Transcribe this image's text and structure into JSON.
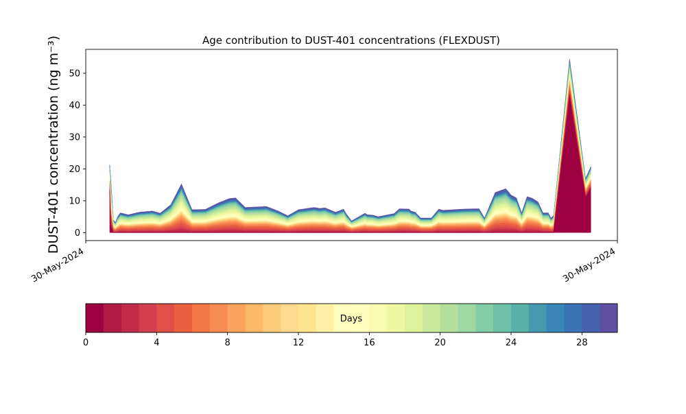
{
  "chart_data": {
    "type": "area",
    "title": "Age contribution to DUST-401 concentrations (FLEXDUST)",
    "ylabel": "DUST-401 concentration (ng m⁻³)",
    "xlabel": "",
    "ylim": [
      -2.5,
      57.5
    ],
    "y_ticks": [
      "0",
      "10",
      "20",
      "30",
      "40",
      "50"
    ],
    "x_ticks": [
      "30-May-2024",
      "30-May-2024"
    ],
    "x": [
      0.045,
      0.047,
      0.052,
      0.056,
      0.06,
      0.065,
      0.08,
      0.1,
      0.125,
      0.14,
      0.16,
      0.18,
      0.2,
      0.225,
      0.25,
      0.27,
      0.282,
      0.3,
      0.34,
      0.362,
      0.38,
      0.4,
      0.42,
      0.43,
      0.44,
      0.45,
      0.47,
      0.485,
      0.49,
      0.5,
      0.525,
      0.53,
      0.54,
      0.55,
      0.58,
      0.59,
      0.608,
      0.612,
      0.62,
      0.63,
      0.65,
      0.664,
      0.672,
      0.7,
      0.71,
      0.73,
      0.74,
      0.75,
      0.77,
      0.79,
      0.8,
      0.81,
      0.82,
      0.83,
      0.84,
      0.851,
      0.86,
      0.87,
      0.875,
      0.88,
      0.91,
      0.94,
      0.95
    ],
    "totals": [
      21.3,
      17.0,
      4.0,
      3.2,
      5.0,
      6.2,
      5.6,
      6.4,
      6.8,
      6.1,
      8.8,
      15.3,
      7.2,
      7.3,
      9.4,
      10.7,
      10.9,
      7.9,
      8.2,
      6.8,
      5.3,
      7.2,
      7.7,
      7.9,
      7.6,
      7.8,
      6.4,
      7.4,
      5.9,
      3.7,
      6.1,
      5.6,
      5.5,
      5.0,
      6.0,
      7.5,
      7.4,
      6.8,
      6.4,
      4.6,
      4.6,
      7.4,
      7.0,
      7.3,
      7.4,
      7.5,
      7.5,
      4.6,
      12.6,
      13.8,
      11.8,
      10.9,
      6.2,
      11.3,
      10.8,
      9.6,
      6.2,
      6.2,
      4.6,
      5.4,
      54.5,
      17.0,
      20.7
    ],
    "age0_day": [
      13.0,
      2.0,
      0.0,
      0.0,
      0.0,
      0.0,
      0.0,
      0.0,
      0.0,
      0.0,
      0.0,
      0.0,
      0.0,
      0.0,
      0.0,
      0.0,
      0.0,
      0.0,
      0.0,
      0.0,
      0.0,
      0.0,
      0.0,
      0.0,
      0.0,
      0.0,
      0.0,
      0.0,
      0.0,
      0.0,
      0.0,
      0.0,
      0.0,
      0.0,
      0.0,
      0.0,
      0.0,
      0.0,
      0.0,
      0.0,
      0.0,
      0.0,
      0.0,
      0.0,
      0.0,
      0.0,
      0.0,
      0.0,
      0.0,
      0.0,
      0.0,
      0.0,
      0.0,
      0.0,
      0.0,
      0.0,
      0.0,
      0.0,
      0.0,
      0.0,
      43.0,
      11.0,
      14.0
    ],
    "colorbar": {
      "label": "Days",
      "min": 0,
      "max": 30,
      "bins": 30,
      "ticks": [
        "0",
        "4",
        "8",
        "12",
        "16",
        "20",
        "24",
        "28"
      ]
    },
    "colors": [
      "#9e0142",
      "#b11a45",
      "#c32a47",
      "#d53e4f",
      "#e05049",
      "#e9613f",
      "#f47748",
      "#f88d53",
      "#fba45f",
      "#fdb969",
      "#fdcb7c",
      "#fed98e",
      "#fee38f",
      "#fff0a7",
      "#fffdbd",
      "#fffebd",
      "#f7fbaf",
      "#eef8a3",
      "#dff29c",
      "#cbe99c",
      "#b4e09e",
      "#9ed8a3",
      "#84cda6",
      "#6dc2a7",
      "#58b0a9",
      "#459aae",
      "#3a86b6",
      "#3973b3",
      "#4661ad",
      "#5e4fa2"
    ],
    "grid": false,
    "legend": "colorbar-bottom"
  }
}
